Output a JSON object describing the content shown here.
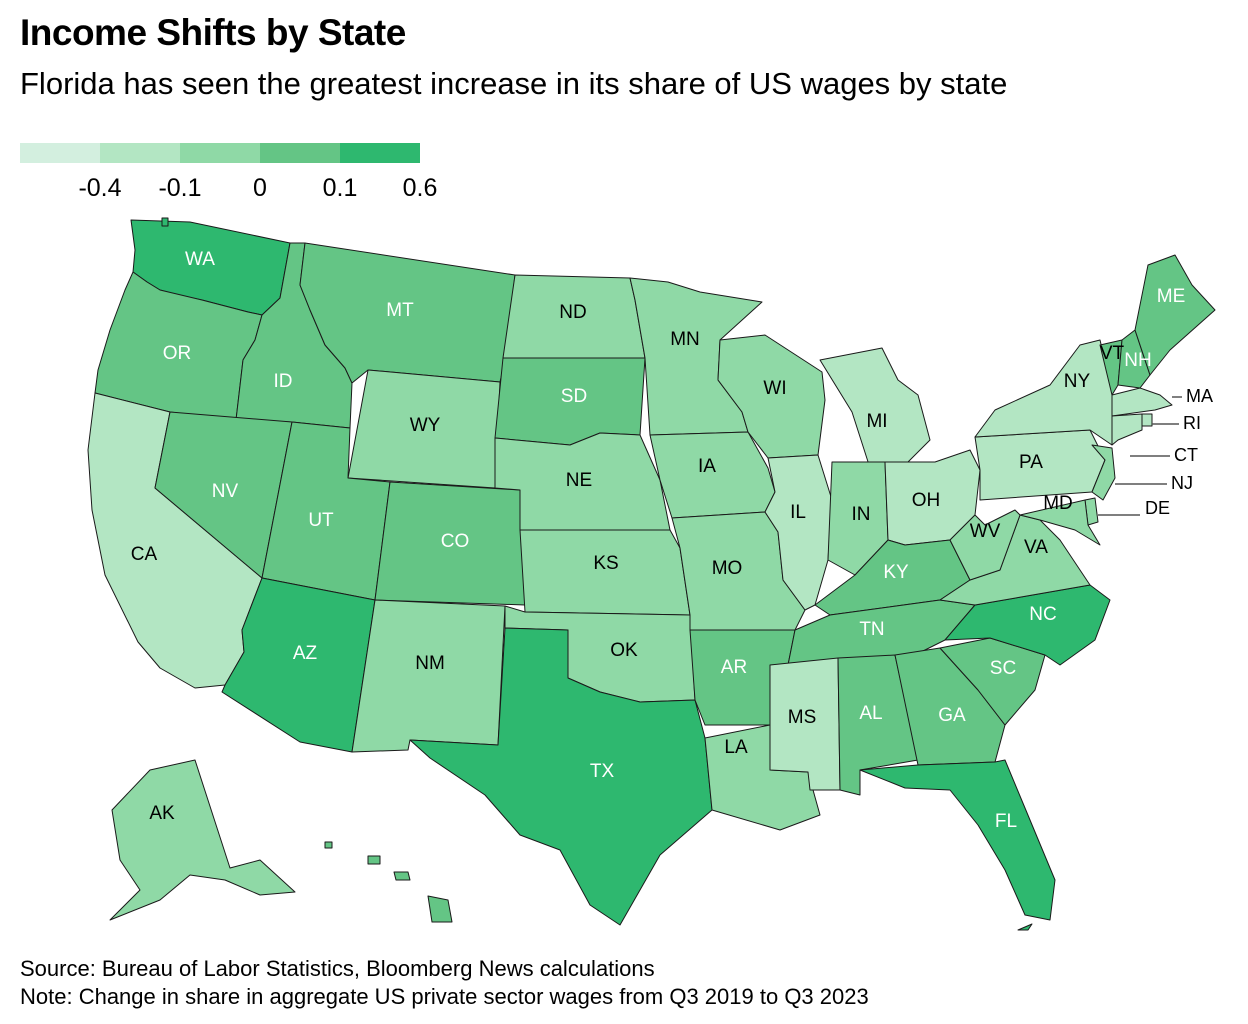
{
  "title": "Income Shifts by State",
  "subtitle": "Florida has seen the greatest increase in its share of US wages by state",
  "legend": {
    "colors": [
      "#d3efdf",
      "#b3e6c3",
      "#8fd9a6",
      "#64c585",
      "#2eb86f"
    ],
    "labels": [
      "-0.4",
      "-0.1",
      "0",
      "0.1",
      "0.6"
    ]
  },
  "states": [
    {
      "abbr": "WA",
      "bin": 4,
      "text_color": "#ffffff"
    },
    {
      "abbr": "OR",
      "bin": 3,
      "text_color": "#ffffff"
    },
    {
      "abbr": "CA",
      "bin": 1,
      "text_color": "#000000"
    },
    {
      "abbr": "ID",
      "bin": 3,
      "text_color": "#ffffff"
    },
    {
      "abbr": "NV",
      "bin": 3,
      "text_color": "#ffffff"
    },
    {
      "abbr": "MT",
      "bin": 3,
      "text_color": "#ffffff"
    },
    {
      "abbr": "WY",
      "bin": 2,
      "text_color": "#000000"
    },
    {
      "abbr": "UT",
      "bin": 3,
      "text_color": "#ffffff"
    },
    {
      "abbr": "AZ",
      "bin": 4,
      "text_color": "#ffffff"
    },
    {
      "abbr": "CO",
      "bin": 3,
      "text_color": "#ffffff"
    },
    {
      "abbr": "NM",
      "bin": 2,
      "text_color": "#000000"
    },
    {
      "abbr": "ND",
      "bin": 2,
      "text_color": "#000000"
    },
    {
      "abbr": "SD",
      "bin": 3,
      "text_color": "#ffffff"
    },
    {
      "abbr": "NE",
      "bin": 2,
      "text_color": "#000000"
    },
    {
      "abbr": "KS",
      "bin": 2,
      "text_color": "#000000"
    },
    {
      "abbr": "OK",
      "bin": 2,
      "text_color": "#000000"
    },
    {
      "abbr": "TX",
      "bin": 4,
      "text_color": "#ffffff"
    },
    {
      "abbr": "MN",
      "bin": 2,
      "text_color": "#000000"
    },
    {
      "abbr": "IA",
      "bin": 2,
      "text_color": "#000000"
    },
    {
      "abbr": "MO",
      "bin": 2,
      "text_color": "#000000"
    },
    {
      "abbr": "AR",
      "bin": 3,
      "text_color": "#ffffff"
    },
    {
      "abbr": "LA",
      "bin": 2,
      "text_color": "#000000"
    },
    {
      "abbr": "WI",
      "bin": 2,
      "text_color": "#000000"
    },
    {
      "abbr": "IL",
      "bin": 1,
      "text_color": "#000000"
    },
    {
      "abbr": "MI",
      "bin": 1,
      "text_color": "#000000"
    },
    {
      "abbr": "IN",
      "bin": 2,
      "text_color": "#000000"
    },
    {
      "abbr": "OH",
      "bin": 1,
      "text_color": "#000000"
    },
    {
      "abbr": "KY",
      "bin": 3,
      "text_color": "#ffffff"
    },
    {
      "abbr": "TN",
      "bin": 3,
      "text_color": "#ffffff"
    },
    {
      "abbr": "MS",
      "bin": 1,
      "text_color": "#000000"
    },
    {
      "abbr": "AL",
      "bin": 3,
      "text_color": "#ffffff"
    },
    {
      "abbr": "GA",
      "bin": 3,
      "text_color": "#ffffff"
    },
    {
      "abbr": "FL",
      "bin": 4,
      "text_color": "#ffffff"
    },
    {
      "abbr": "SC",
      "bin": 3,
      "text_color": "#ffffff"
    },
    {
      "abbr": "NC",
      "bin": 4,
      "text_color": "#ffffff"
    },
    {
      "abbr": "VA",
      "bin": 2,
      "text_color": "#000000"
    },
    {
      "abbr": "WV",
      "bin": 2,
      "text_color": "#000000"
    },
    {
      "abbr": "PA",
      "bin": 1,
      "text_color": "#000000"
    },
    {
      "abbr": "NY",
      "bin": 1,
      "text_color": "#000000"
    },
    {
      "abbr": "VT",
      "bin": 3,
      "text_color": "#000000"
    },
    {
      "abbr": "NH",
      "bin": 3,
      "text_color": "#ffffff"
    },
    {
      "abbr": "ME",
      "bin": 3,
      "text_color": "#ffffff"
    },
    {
      "abbr": "MA",
      "bin": 1,
      "text_color": "#000000"
    },
    {
      "abbr": "RI",
      "bin": 1,
      "text_color": "#000000"
    },
    {
      "abbr": "CT",
      "bin": 1,
      "text_color": "#000000"
    },
    {
      "abbr": "NJ",
      "bin": 2,
      "text_color": "#000000"
    },
    {
      "abbr": "DE",
      "bin": 2,
      "text_color": "#000000"
    },
    {
      "abbr": "MD",
      "bin": 2,
      "text_color": "#000000"
    },
    {
      "abbr": "AK",
      "bin": 2,
      "text_color": "#000000"
    },
    {
      "abbr": "HI",
      "bin": 3,
      "text_color": "#000000"
    }
  ],
  "footer": {
    "source": "Source: Bureau of Labor Statistics, Bloomberg News calculations",
    "note": "Note: Change in share in aggregate US private sector wages from Q3 2019 to Q3 2023"
  }
}
